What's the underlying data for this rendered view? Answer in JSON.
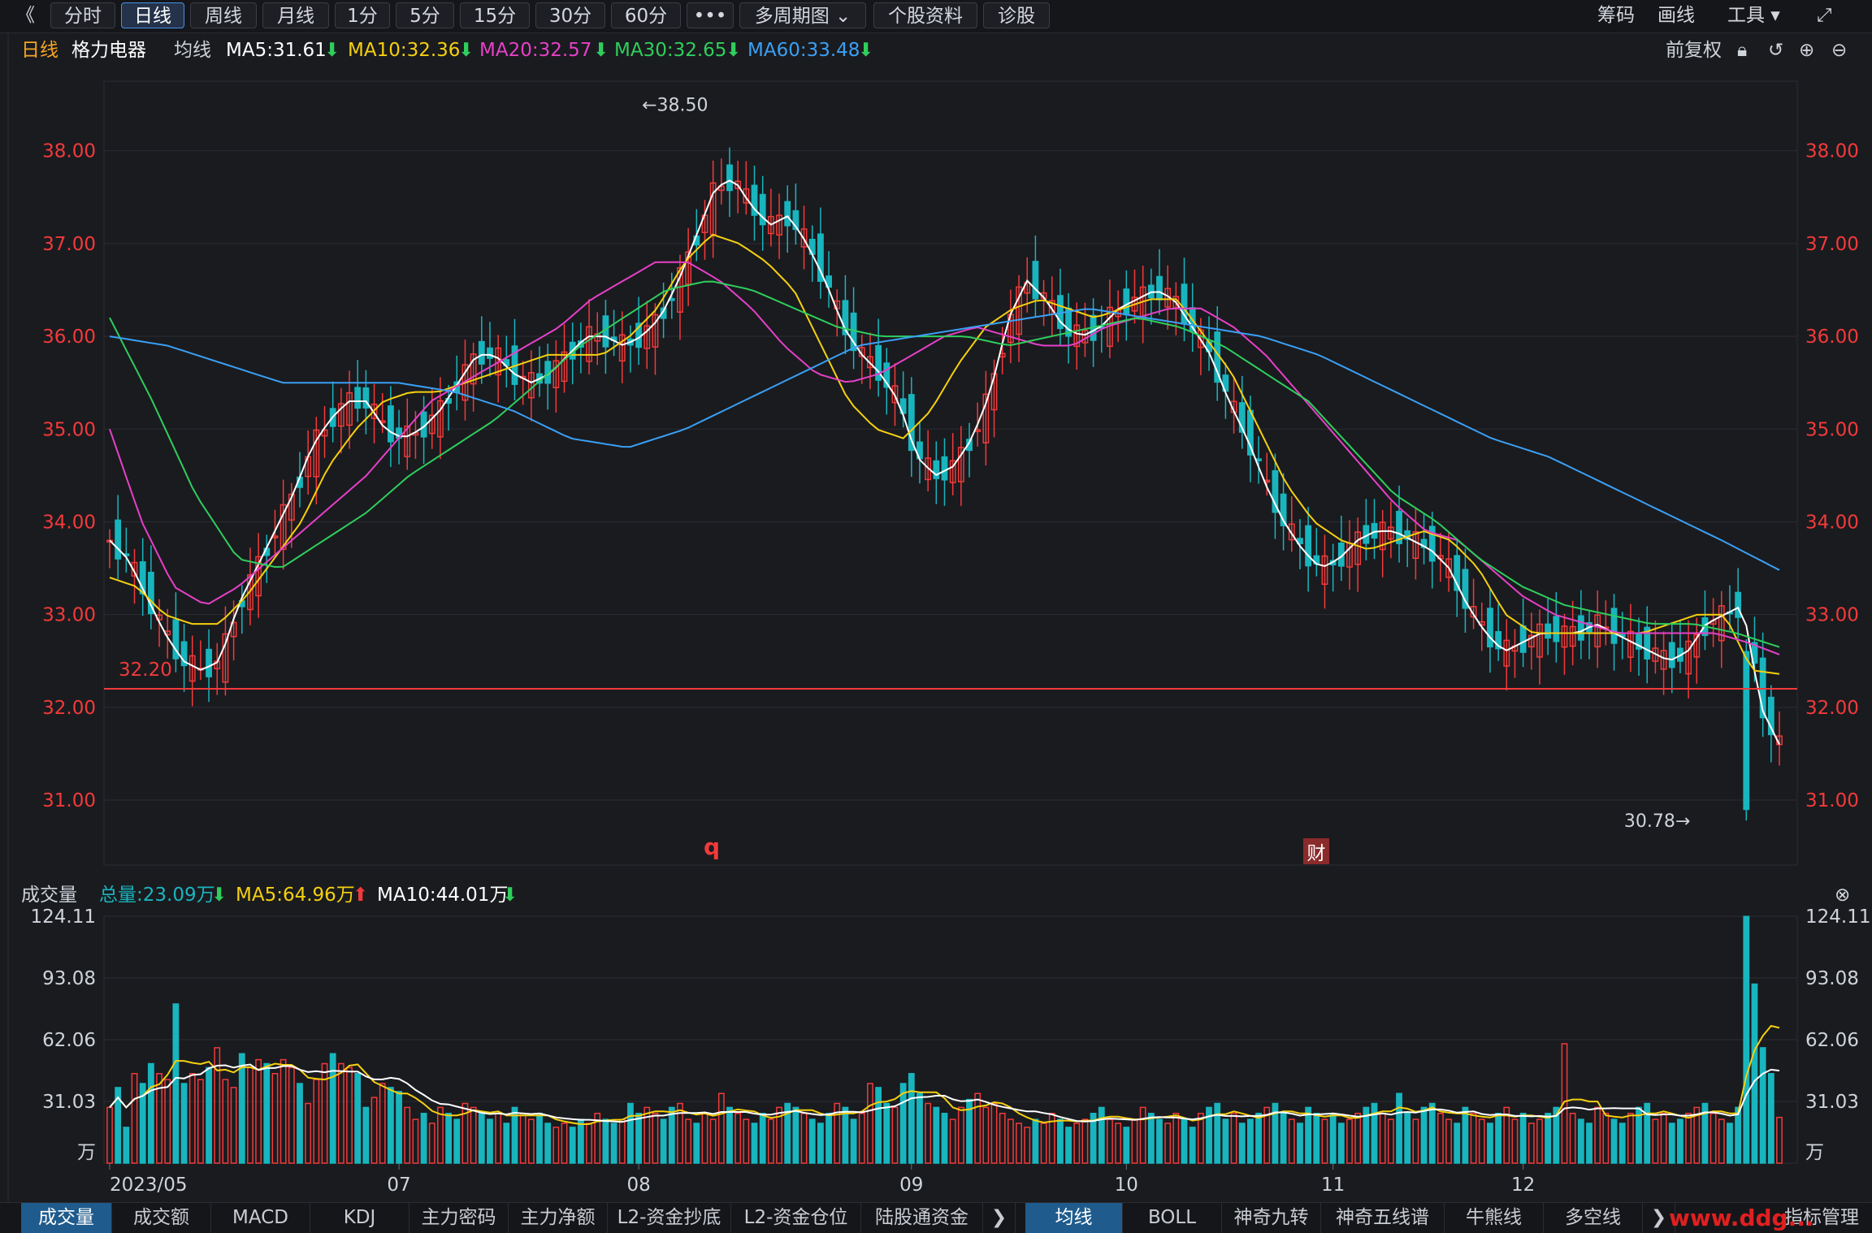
{
  "toolbar": {
    "back": "《",
    "tabs": [
      "分时",
      "日线",
      "周线",
      "月线",
      "1分",
      "5分",
      "15分",
      "30分",
      "60分",
      "•••",
      "多周期图 ⌄",
      "个股资料",
      "诊股"
    ],
    "active_tab": "日线",
    "right": [
      "筹码",
      "画线",
      "工具 ▾"
    ],
    "fullscreen": "⤢"
  },
  "info": {
    "period": "日线",
    "stock": "格力电器",
    "ma_label": "均线",
    "ma": [
      {
        "text": "MA5:31.61",
        "color": "#ffffff"
      },
      {
        "text": "MA10:32.36",
        "color": "#f5d00f"
      },
      {
        "text": "MA20:32.57",
        "color": "#e640c8"
      },
      {
        "text": "MA30:32.65",
        "color": "#2fce5c"
      },
      {
        "text": "MA60:33.48",
        "color": "#3aa0f5"
      }
    ],
    "fq": "前复权"
  },
  "volume_info": {
    "label": "成交量",
    "total": "总量:23.09万",
    "ma5": "MA5:64.96万",
    "ma10": "MA10:44.01万"
  },
  "bottom_left_tabs": [
    "成交量",
    "成交额",
    "MACD",
    "KDJ",
    "主力密码",
    "主力净额",
    "L2-资金抄底",
    "L2-资金仓位",
    "陆股通资金"
  ],
  "bottom_right_tabs": [
    "均线",
    "BOLL",
    "神奇九转",
    "神奇五线谱",
    "牛熊线",
    "多空线"
  ],
  "bottom_more": "指标管理",
  "watermark": "www.ddg...",
  "annotations": {
    "high": "←38.50",
    "low": "30.78→",
    "hline": "32.20",
    "q": "q",
    "cai": "财"
  },
  "colors": {
    "up": "#f23a3a",
    "down": "#19b5be",
    "ma5": "#ffffff",
    "ma10": "#f5d00f",
    "ma20": "#e640c8",
    "ma30": "#2fce5c",
    "ma60": "#3aa0f5"
  },
  "chart_data": {
    "type": "candlestick",
    "price_ticks": [
      "38.00",
      "37.00",
      "36.00",
      "35.00",
      "34.00",
      "33.00",
      "32.00",
      "31.00"
    ],
    "price_range": [
      30.3,
      38.75
    ],
    "volume_ticks": [
      "124.11",
      "93.08",
      "62.06",
      "31.03"
    ],
    "volume_unit": "万",
    "volume_range": [
      0,
      124.11
    ],
    "x_labels": [
      {
        "label": "2023/05",
        "index": 0
      },
      {
        "label": "07",
        "index": 35
      },
      {
        "label": "08",
        "index": 64
      },
      {
        "label": "09",
        "index": 97
      },
      {
        "label": "10",
        "index": 123
      },
      {
        "label": "11",
        "index": 148
      },
      {
        "label": "12",
        "index": 171
      }
    ],
    "high_label": {
      "value": 38.5,
      "index": 64
    },
    "low_label": {
      "value": 30.78,
      "index": 192
    },
    "hline": 32.2,
    "volume_bars": [
      28,
      38,
      18,
      45,
      40,
      50,
      45,
      42,
      80,
      40,
      45,
      42,
      48,
      58,
      42,
      38,
      55,
      48,
      52,
      50,
      45,
      52,
      48,
      40,
      30,
      42,
      50,
      55,
      50,
      48,
      45,
      28,
      33,
      40,
      38,
      36,
      28,
      22,
      25,
      20,
      28,
      25,
      22,
      30,
      28,
      25,
      22,
      25,
      20,
      28,
      25,
      22,
      25,
      20,
      18,
      20,
      18,
      22,
      20,
      25,
      22,
      20,
      22,
      30,
      25,
      28,
      25,
      22,
      28,
      30,
      22,
      20,
      25,
      22,
      35,
      28,
      25,
      22,
      20,
      25,
      22,
      28,
      30,
      28,
      25,
      22,
      20,
      25,
      30,
      28,
      22,
      25,
      40,
      38,
      30,
      28,
      40,
      45,
      35,
      30,
      28,
      25,
      22,
      28,
      32,
      35,
      28,
      30,
      25,
      22,
      20,
      18,
      22,
      20,
      25,
      22,
      18,
      20,
      22,
      25,
      28,
      22,
      20,
      18,
      22,
      28,
      25,
      22,
      20,
      25,
      22,
      18,
      25,
      28,
      30,
      22,
      25,
      20,
      22,
      25,
      28,
      30,
      25,
      22,
      20,
      28,
      25,
      22,
      25,
      20,
      22,
      25,
      28,
      30,
      25,
      22,
      35,
      25,
      22,
      28,
      30,
      25,
      22,
      20,
      28,
      25,
      22,
      20,
      25,
      28,
      22,
      25,
      20,
      22,
      25,
      28,
      60,
      25,
      22,
      20,
      28,
      25,
      22,
      20,
      25,
      28,
      30,
      22,
      25,
      20,
      22,
      25,
      28,
      30,
      25,
      22,
      20,
      28,
      124,
      90,
      58,
      45,
      23
    ],
    "ma_lines": {
      "ma5": [
        33.8,
        33.6,
        33.2,
        32.8,
        32.5,
        32.4,
        32.5,
        33.1,
        33.5,
        33.9,
        34.3,
        34.8,
        35.1,
        35.3,
        35.3,
        35.0,
        34.9,
        35.0,
        35.2,
        35.5,
        35.8,
        35.8,
        35.6,
        35.5,
        35.6,
        35.8,
        36.0,
        36.0,
        35.9,
        36.0,
        36.2,
        36.6,
        37.1,
        37.6,
        37.7,
        37.4,
        37.2,
        37.3,
        37.0,
        36.6,
        36.1,
        35.8,
        35.6,
        35.3,
        34.7,
        34.5,
        34.6,
        34.9,
        35.4,
        36.2,
        36.6,
        36.4,
        36.1,
        36.0,
        36.1,
        36.3,
        36.4,
        36.5,
        36.4,
        36.1,
        35.8,
        35.3,
        34.9,
        34.4,
        34.0,
        33.7,
        33.5,
        33.6,
        33.8,
        33.9,
        33.9,
        33.8,
        33.7,
        33.5,
        33.1,
        32.8,
        32.6,
        32.7,
        32.8,
        32.8,
        32.8,
        32.9,
        32.8,
        32.7,
        32.6,
        32.5,
        32.6,
        32.9,
        33.0,
        33.1,
        32.0,
        31.6
      ],
      "ma10": [
        33.4,
        33.3,
        33.0,
        32.9,
        32.9,
        33.2,
        33.6,
        34.0,
        34.6,
        35.0,
        35.3,
        35.4,
        35.4,
        35.5,
        35.6,
        35.7,
        35.8,
        35.8,
        35.8,
        36.0,
        36.3,
        36.8,
        37.1,
        37.0,
        36.8,
        36.5,
        35.9,
        35.3,
        35.0,
        34.9,
        35.2,
        35.7,
        36.1,
        36.3,
        36.4,
        36.3,
        36.2,
        36.3,
        36.4,
        36.4,
        36.0,
        35.6,
        35.0,
        34.4,
        34.0,
        33.8,
        33.7,
        33.8,
        33.9,
        33.8,
        33.5,
        33.0,
        32.8,
        32.8,
        32.8,
        32.8,
        32.8,
        32.9,
        33.0,
        33.0,
        32.4,
        32.36
      ],
      "ma20": [
        35.0,
        34.0,
        33.3,
        33.1,
        33.3,
        33.6,
        33.9,
        34.2,
        34.5,
        34.9,
        35.3,
        35.5,
        35.7,
        35.9,
        36.1,
        36.4,
        36.6,
        36.8,
        36.8,
        36.6,
        36.3,
        35.9,
        35.6,
        35.5,
        35.6,
        35.8,
        36.0,
        36.1,
        36.0,
        35.9,
        35.9,
        36.1,
        36.2,
        36.3,
        36.3,
        36.1,
        35.8,
        35.4,
        35.0,
        34.6,
        34.2,
        33.9,
        33.8,
        33.5,
        33.2,
        33.0,
        32.9,
        32.8,
        32.8,
        32.8,
        32.8,
        32.7,
        32.57
      ],
      "ma30": [
        36.2,
        35.3,
        34.3,
        33.6,
        33.5,
        33.8,
        34.1,
        34.5,
        34.8,
        35.1,
        35.5,
        35.9,
        36.2,
        36.5,
        36.6,
        36.5,
        36.3,
        36.1,
        36.0,
        36.0,
        36.0,
        35.9,
        36.0,
        36.1,
        36.2,
        36.1,
        35.9,
        35.6,
        35.3,
        34.8,
        34.3,
        34.0,
        33.6,
        33.3,
        33.1,
        33.0,
        32.9,
        32.9,
        32.8,
        32.65
      ],
      "ma60": [
        36.0,
        35.9,
        35.7,
        35.5,
        35.5,
        35.5,
        35.4,
        35.2,
        34.9,
        34.8,
        35.0,
        35.3,
        35.6,
        35.9,
        36.0,
        36.1,
        36.2,
        36.3,
        36.2,
        36.1,
        36.0,
        35.8,
        35.5,
        35.2,
        34.9,
        34.7,
        34.4,
        34.1,
        33.8,
        33.48
      ]
    }
  }
}
